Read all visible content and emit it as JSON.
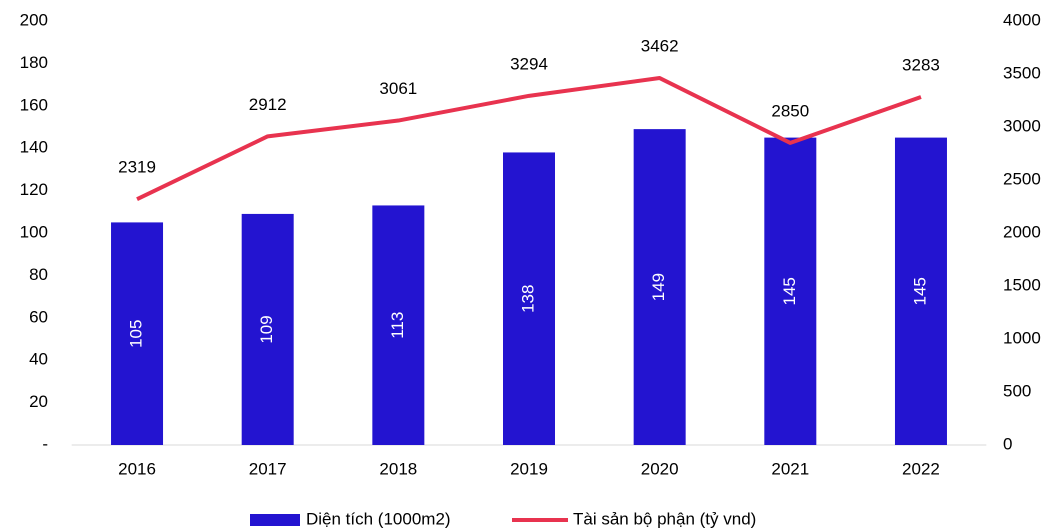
{
  "chart_data": {
    "type": "combo",
    "categories": [
      "2016",
      "2017",
      "2018",
      "2019",
      "2020",
      "2021",
      "2022"
    ],
    "series": [
      {
        "name": "Diện tích (1000m2)",
        "type": "bar",
        "color": "#2314d0",
        "axis": "y",
        "values": [
          105,
          109,
          113,
          138,
          149,
          145,
          145
        ]
      },
      {
        "name": "Tài sản bộ phận (tỷ vnd)",
        "type": "line",
        "color": "#e8334f",
        "axis": "y2",
        "values": [
          2319,
          2912,
          3061,
          3294,
          3462,
          2850,
          3283
        ]
      }
    ],
    "ylim": [
      0,
      200
    ],
    "yticks": [
      {
        "value": 0,
        "label": "-"
      },
      20,
      40,
      60,
      80,
      100,
      120,
      140,
      160,
      180,
      200
    ],
    "y2lim": [
      0,
      4000
    ],
    "y2ticks": [
      0,
      500,
      1000,
      1500,
      2000,
      2500,
      3000,
      3500,
      4000
    ],
    "grid": false,
    "legend": "bottom"
  }
}
